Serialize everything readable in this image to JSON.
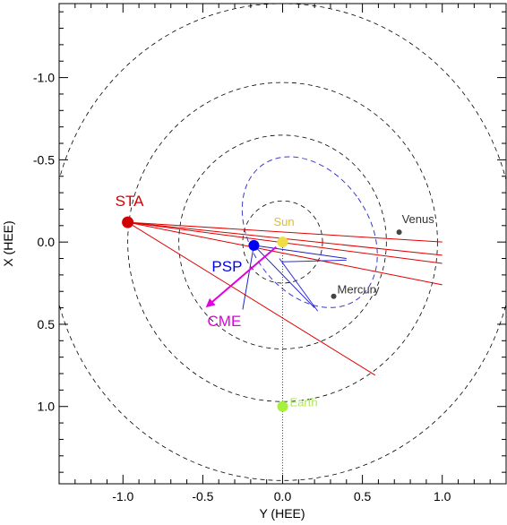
{
  "chart_data": {
    "type": "scatter",
    "title": "",
    "xlabel": "Y (HEE)",
    "ylabel": "X (HEE)",
    "xlim": [
      -1.4,
      1.4
    ],
    "ylim": [
      -1.45,
      1.47
    ],
    "y_inverted": true,
    "grid": false,
    "x_ticks": [
      "-1.0",
      "-0.5",
      "0.0",
      "0.5",
      "1.0"
    ],
    "x_tick_values": [
      -1.0,
      -0.5,
      0.0,
      0.5,
      1.0
    ],
    "y_ticks": [
      "-1.0",
      "-0.5",
      "0.0",
      "0.5",
      "1.0"
    ],
    "y_tick_values": [
      -1.0,
      -0.5,
      0.0,
      0.5,
      1.0
    ],
    "orbits": [
      {
        "name": "orbit-0.25",
        "radius": 0.25,
        "color": "#000000"
      },
      {
        "name": "orbit-0.65",
        "radius": 0.65,
        "color": "#000000"
      },
      {
        "name": "orbit-0.97",
        "radius": 0.97,
        "color": "#000000"
      },
      {
        "name": "orbit-1.45",
        "radius": 1.45,
        "color": "#000000"
      }
    ],
    "cme_ellipse": {
      "center": [
        0.17,
        -0.06
      ],
      "rx": 0.37,
      "ry": 0.5,
      "rotation_deg": -35,
      "color": "#3a3ad0"
    },
    "bodies": [
      {
        "name": "STA",
        "y": -0.97,
        "x": -0.12,
        "color": "#d00000",
        "size": 13,
        "label_color": "#d00000"
      },
      {
        "name": "PSP",
        "y": -0.18,
        "x": 0.02,
        "color": "#0000ee",
        "size": 12,
        "label_color": "#0000ee"
      },
      {
        "name": "Sun",
        "y": 0.0,
        "x": 0.0,
        "color": "#eedd44",
        "size": 12,
        "label_color": "#e0c020"
      },
      {
        "name": "Earth",
        "y": 0.0,
        "x": 1.0,
        "color": "#a8f040",
        "size": 12,
        "label_color": "#a8f040"
      },
      {
        "name": "Venus",
        "y": 0.73,
        "x": -0.06,
        "color": "#444444",
        "size": 6,
        "label_color": "#333333"
      },
      {
        "name": "Mercury",
        "y": 0.32,
        "x": 0.33,
        "color": "#444444",
        "size": 6,
        "label_color": "#333333"
      }
    ],
    "sta_lines": [
      {
        "to": [
          1.0,
          0.0
        ]
      },
      {
        "to": [
          1.0,
          0.08
        ]
      },
      {
        "to": [
          1.0,
          0.13
        ]
      },
      {
        "to": [
          1.0,
          0.26
        ]
      },
      {
        "to": [
          0.58,
          0.81
        ]
      }
    ],
    "psp_lines": [
      {
        "from": [
          -0.18,
          0.02
        ],
        "to": [
          0.2,
          0.4
        ]
      },
      {
        "from": [
          -0.18,
          0.02
        ],
        "to": [
          0.4,
          0.1
        ]
      },
      {
        "from": [
          -0.18,
          0.02
        ],
        "to": [
          -0.25,
          0.41
        ]
      }
    ],
    "psp_blue_lines": [
      {
        "from": [
          -0.02,
          0.1
        ],
        "to": [
          0.22,
          0.42
        ]
      },
      {
        "from": [
          0.0,
          0.12
        ],
        "to": [
          0.4,
          0.11
        ]
      }
    ],
    "cme_arrow": {
      "from": [
        -0.04,
        0.03
      ],
      "to": [
        -0.46,
        0.38
      ],
      "color": "#e000e0",
      "label": "CME"
    },
    "earth_line": {
      "from": [
        0.0,
        0.0
      ],
      "to": [
        0.0,
        1.47
      ]
    }
  }
}
